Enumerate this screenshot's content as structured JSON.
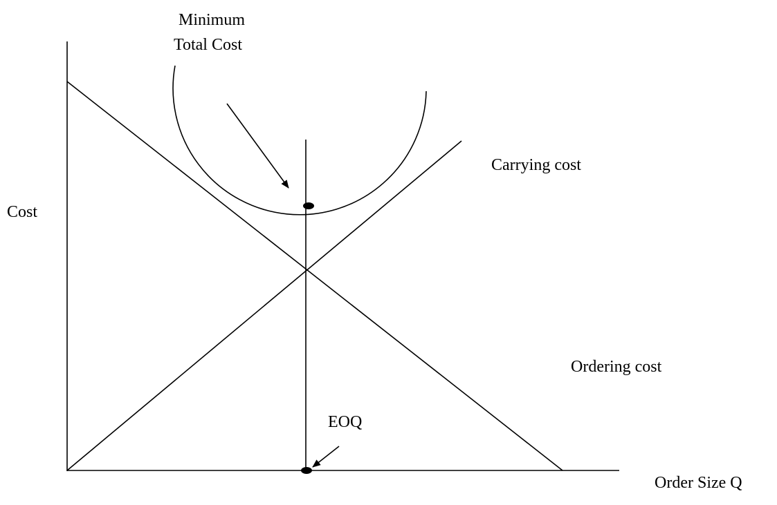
{
  "title_lines": [
    "Minimum",
    "Total Cost"
  ],
  "carrying_label": "Carrying cost",
  "y_axis_label": "Cost",
  "ordering_label": "Ordering cost",
  "eoq_label": "EOQ",
  "x_axis_label": "Order Size Q"
}
